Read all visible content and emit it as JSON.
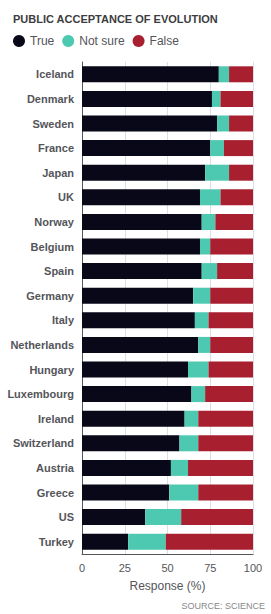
{
  "chart_data": {
    "type": "bar",
    "orientation": "horizontal",
    "stacked": true,
    "title": "PUBLIC ACCEPTANCE OF EVOLUTION",
    "xlabel": "Response (%)",
    "annotation": "SOURCE: SCIENCE",
    "categories": [
      "Iceland",
      "Denmark",
      "Sweden",
      "France",
      "Japan",
      "UK",
      "Norway",
      "Belgium",
      "Spain",
      "Germany",
      "Italy",
      "Netherlands",
      "Hungary",
      "Luxembourg",
      "Ireland",
      "Switzerland",
      "Austria",
      "Greece",
      "US",
      "Turkey"
    ],
    "series": [
      {
        "name": "True",
        "color": "#080818",
        "values": [
          80,
          76,
          79,
          75,
          72,
          69,
          70,
          69,
          70,
          65,
          66,
          68,
          62,
          64,
          60,
          57,
          52,
          51,
          37,
          27
        ]
      },
      {
        "name": "Not sure",
        "color": "#4CC9B0",
        "values": [
          6,
          5,
          7,
          8,
          14,
          12,
          8,
          6,
          9,
          10,
          8,
          7,
          12,
          8,
          8,
          11,
          10,
          17,
          21,
          22
        ]
      },
      {
        "name": "False",
        "color": "#A82030",
        "values": [
          14,
          19,
          14,
          17,
          14,
          19,
          22,
          25,
          21,
          25,
          26,
          25,
          26,
          28,
          32,
          32,
          38,
          32,
          42,
          51
        ]
      }
    ],
    "xlim": [
      0,
      100
    ],
    "xticks": [
      0,
      25,
      50,
      75,
      100
    ],
    "grid": true,
    "legend": "upper left"
  }
}
